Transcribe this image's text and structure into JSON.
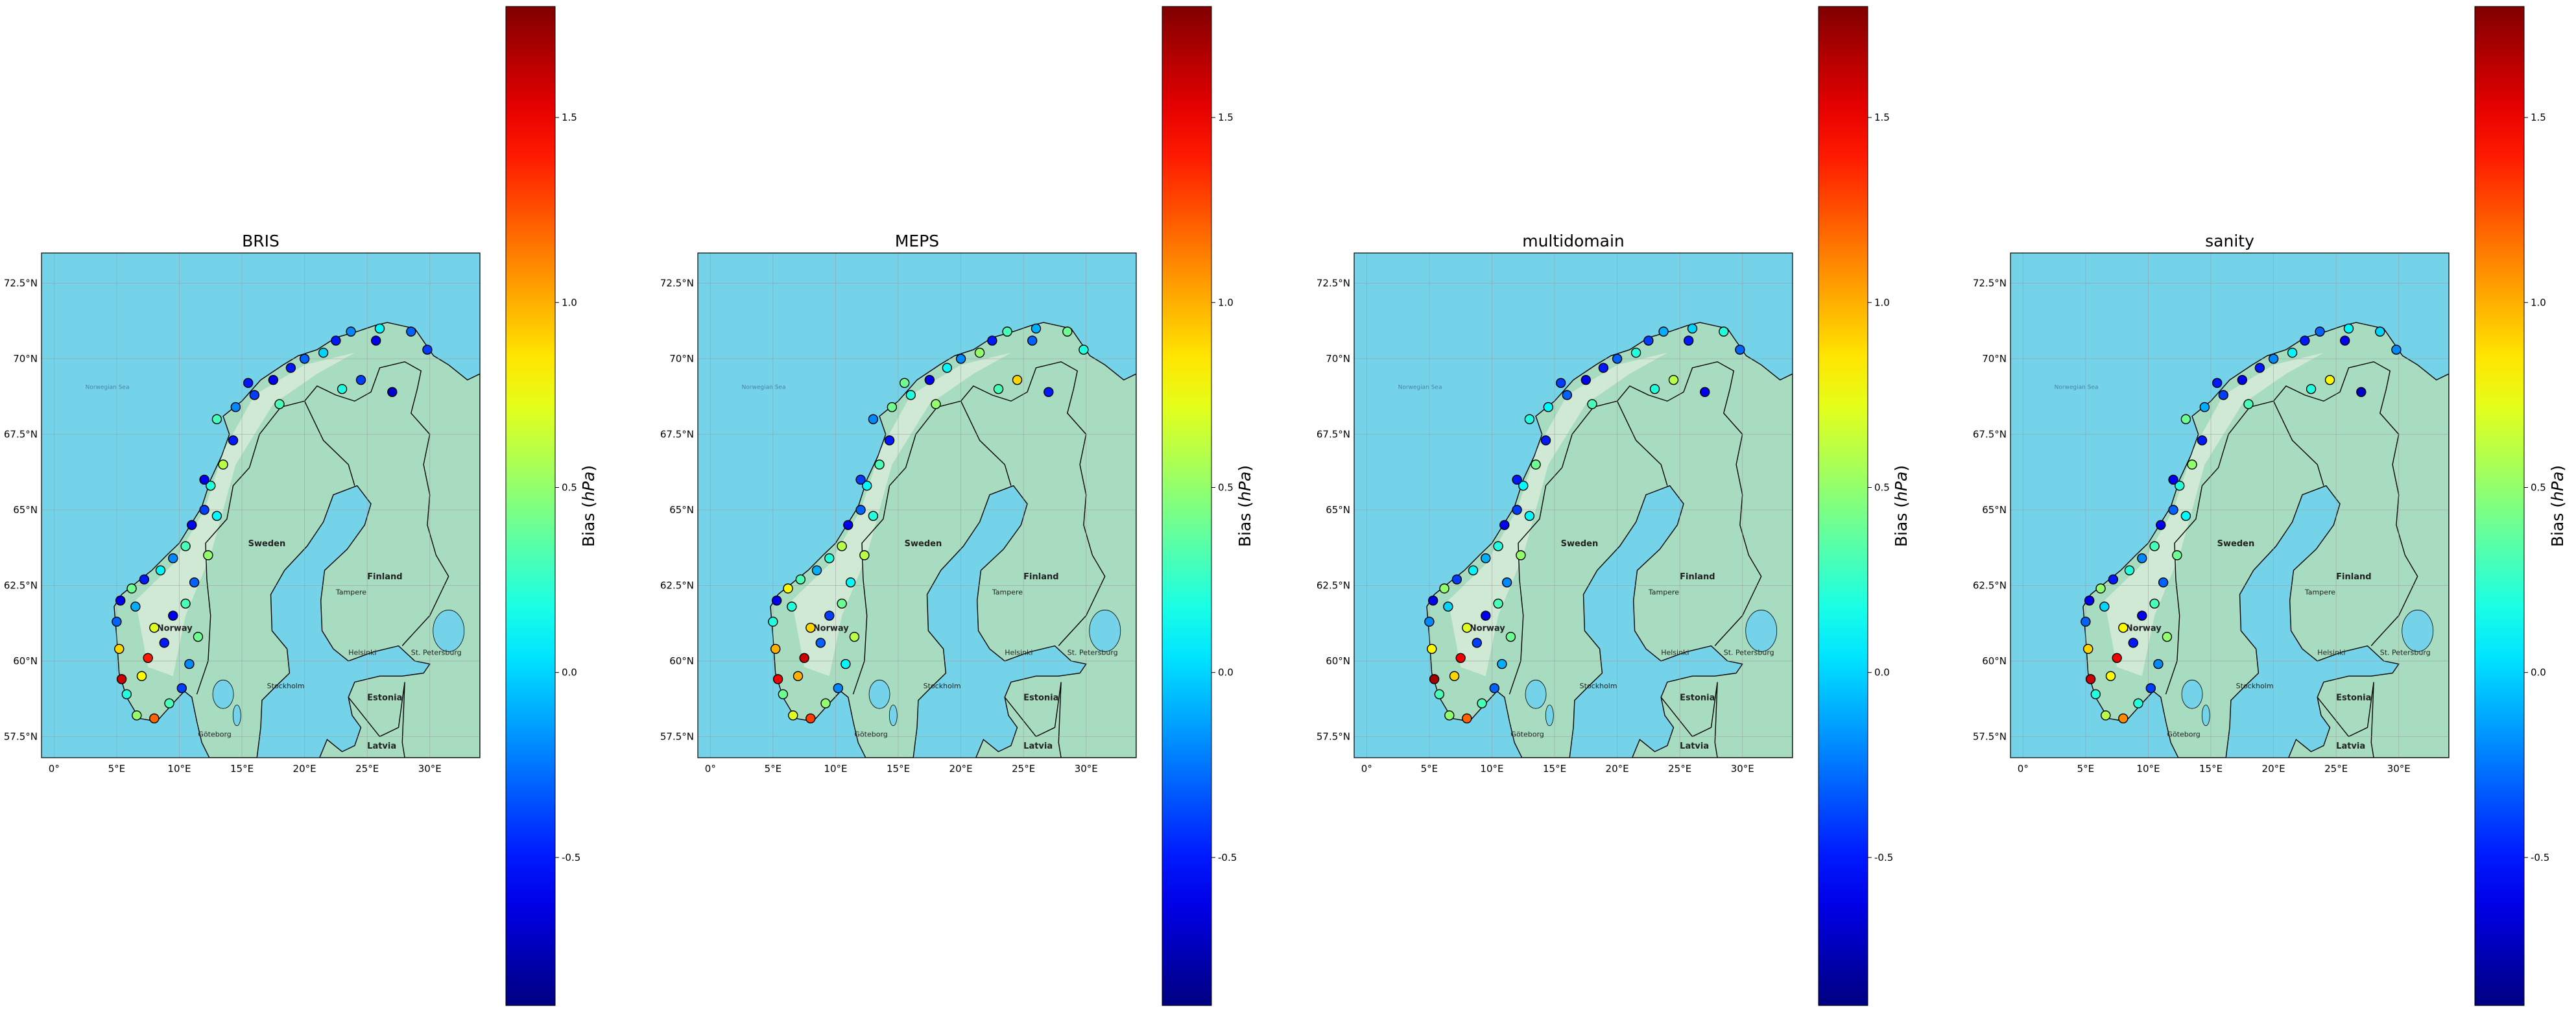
{
  "colorbar": {
    "label_prefix": "Bias (",
    "label_unit": "hPa",
    "label_suffix": ")",
    "ticks": [
      "-0.5",
      "0.0",
      "0.5",
      "1.0",
      "1.5"
    ],
    "tick_values": [
      -0.5,
      0.0,
      0.5,
      1.0,
      1.5
    ],
    "range": [
      -0.9,
      1.8
    ],
    "colormap": "jet"
  },
  "map": {
    "lat_ticks": [
      "72.5°N",
      "70°N",
      "67.5°N",
      "65°N",
      "62.5°N",
      "60°N",
      "57.5°N"
    ],
    "lon_ticks": [
      "0°",
      "5°E",
      "10°E",
      "15°E",
      "20°E",
      "25°E",
      "30°E"
    ],
    "extent": {
      "lon": [
        -1,
        34
      ],
      "lat": [
        56.8,
        73.5
      ]
    },
    "sea_color": "#74d3e8",
    "land_color": "#a8dcc0",
    "labels": {
      "norway": "Norway",
      "sweden": "Sweden",
      "finland": "Finland",
      "estonia": "Estonia",
      "latvia": "Latvia",
      "tampere": "Tampere",
      "helsinki": "Helsinki",
      "st_petersburg": "St. Petersburg",
      "stockholm": "Stockholm",
      "goteborg": "Göteborg",
      "norwegian_sea": "Norwegian Sea"
    }
  },
  "panels": [
    {
      "title": "BRIS"
    },
    {
      "title": "MEPS"
    },
    {
      "title": "multidomain"
    },
    {
      "title": "sanity"
    }
  ],
  "stations": [
    {
      "lon": 29.8,
      "lat": 70.3
    },
    {
      "lon": 28.5,
      "lat": 70.9
    },
    {
      "lon": 26.0,
      "lat": 71.0
    },
    {
      "lon": 25.7,
      "lat": 70.6
    },
    {
      "lon": 23.7,
      "lat": 70.9
    },
    {
      "lon": 22.5,
      "lat": 70.6
    },
    {
      "lon": 21.5,
      "lat": 70.2
    },
    {
      "lon": 20.0,
      "lat": 70.0
    },
    {
      "lon": 18.9,
      "lat": 69.7
    },
    {
      "lon": 17.5,
      "lat": 69.3
    },
    {
      "lon": 16.0,
      "lat": 68.8
    },
    {
      "lon": 14.5,
      "lat": 68.4
    },
    {
      "lon": 13.0,
      "lat": 68.0
    },
    {
      "lon": 14.3,
      "lat": 67.3
    },
    {
      "lon": 13.5,
      "lat": 66.5
    },
    {
      "lon": 12.5,
      "lat": 65.8
    },
    {
      "lon": 12.0,
      "lat": 65.0
    },
    {
      "lon": 11.0,
      "lat": 64.5
    },
    {
      "lon": 10.5,
      "lat": 63.8
    },
    {
      "lon": 9.5,
      "lat": 63.4
    },
    {
      "lon": 8.5,
      "lat": 63.0
    },
    {
      "lon": 7.2,
      "lat": 62.7
    },
    {
      "lon": 6.2,
      "lat": 62.4
    },
    {
      "lon": 5.3,
      "lat": 62.0
    },
    {
      "lon": 5.0,
      "lat": 61.3
    },
    {
      "lon": 5.2,
      "lat": 60.4
    },
    {
      "lon": 5.4,
      "lat": 59.4
    },
    {
      "lon": 5.8,
      "lat": 58.9
    },
    {
      "lon": 6.6,
      "lat": 58.2
    },
    {
      "lon": 8.0,
      "lat": 58.1
    },
    {
      "lon": 9.2,
      "lat": 58.6
    },
    {
      "lon": 10.2,
      "lat": 59.1
    },
    {
      "lon": 10.8,
      "lat": 59.9
    },
    {
      "lon": 11.5,
      "lat": 60.8
    },
    {
      "lon": 9.5,
      "lat": 61.5
    },
    {
      "lon": 8.0,
      "lat": 61.1
    },
    {
      "lon": 7.5,
      "lat": 60.1
    },
    {
      "lon": 8.8,
      "lat": 60.6
    },
    {
      "lon": 10.5,
      "lat": 61.9
    },
    {
      "lon": 11.2,
      "lat": 62.6
    },
    {
      "lon": 12.3,
      "lat": 63.5
    },
    {
      "lon": 7.0,
      "lat": 59.5
    },
    {
      "lon": 6.5,
      "lat": 61.8
    },
    {
      "lon": 24.5,
      "lat": 69.3
    },
    {
      "lon": 27.0,
      "lat": 68.9
    },
    {
      "lon": 23.0,
      "lat": 69.0
    },
    {
      "lon": 15.5,
      "lat": 69.2
    },
    {
      "lon": 18.0,
      "lat": 68.5
    },
    {
      "lon": 12.0,
      "lat": 66.0
    },
    {
      "lon": 13.0,
      "lat": 64.8
    }
  ],
  "bias": {
    "BRIS": [
      -0.4,
      -0.3,
      0.1,
      -0.6,
      -0.2,
      -0.5,
      0.0,
      -0.3,
      -0.5,
      -0.6,
      -0.4,
      -0.2,
      0.3,
      -0.5,
      0.6,
      0.2,
      -0.4,
      -0.6,
      0.3,
      -0.2,
      0.1,
      -0.5,
      0.4,
      -0.6,
      -0.3,
      0.9,
      1.6,
      0.2,
      0.5,
      1.2,
      0.3,
      -0.4,
      -0.2,
      0.4,
      -0.6,
      0.7,
      1.4,
      -0.5,
      0.3,
      -0.3,
      0.5,
      0.8,
      -0.1,
      -0.4,
      -0.7,
      0.2,
      -0.5,
      0.3,
      -0.6,
      0.1
    ],
    "MEPS": [
      0.2,
      0.4,
      -0.1,
      -0.3,
      0.3,
      -0.5,
      0.5,
      -0.2,
      0.1,
      -0.6,
      0.2,
      0.4,
      -0.2,
      -0.5,
      0.3,
      0.1,
      -0.3,
      -0.6,
      0.6,
      0.2,
      -0.1,
      0.3,
      0.8,
      -0.6,
      0.2,
      1.0,
      1.5,
      0.4,
      0.7,
      1.3,
      0.5,
      -0.2,
      0.1,
      0.6,
      -0.4,
      0.9,
      1.6,
      -0.3,
      0.4,
      0.1,
      0.6,
      1.0,
      0.2,
      0.9,
      -0.5,
      0.3,
      0.4,
      0.5,
      -0.4,
      0.2
    ],
    "multidomain": [
      -0.3,
      0.2,
      0.0,
      -0.5,
      -0.1,
      -0.4,
      0.2,
      -0.3,
      -0.5,
      -0.6,
      -0.3,
      0.1,
      0.2,
      -0.5,
      0.4,
      0.1,
      -0.4,
      -0.6,
      0.2,
      -0.1,
      0.1,
      -0.4,
      0.5,
      -0.6,
      -0.2,
      0.8,
      1.7,
      0.3,
      0.5,
      1.2,
      0.3,
      -0.3,
      -0.1,
      0.4,
      -0.6,
      0.7,
      1.5,
      -0.4,
      0.3,
      -0.2,
      0.5,
      0.9,
      0.0,
      0.6,
      -0.6,
      0.2,
      -0.4,
      0.3,
      -0.5,
      0.1
    ],
    "sanity": [
      -0.2,
      0.0,
      0.1,
      -0.6,
      -0.3,
      -0.5,
      0.1,
      -0.2,
      -0.5,
      -0.6,
      -0.4,
      -0.1,
      0.4,
      -0.5,
      0.5,
      0.2,
      -0.3,
      -0.6,
      0.3,
      -0.2,
      0.2,
      -0.5,
      0.5,
      -0.6,
      -0.3,
      0.9,
      1.6,
      0.2,
      0.6,
      1.1,
      0.2,
      -0.4,
      -0.2,
      0.5,
      -0.6,
      0.8,
      1.5,
      -0.5,
      0.3,
      -0.3,
      0.4,
      0.8,
      0.0,
      0.8,
      -0.7,
      0.2,
      -0.5,
      0.3,
      -0.6,
      0.1
    ]
  }
}
